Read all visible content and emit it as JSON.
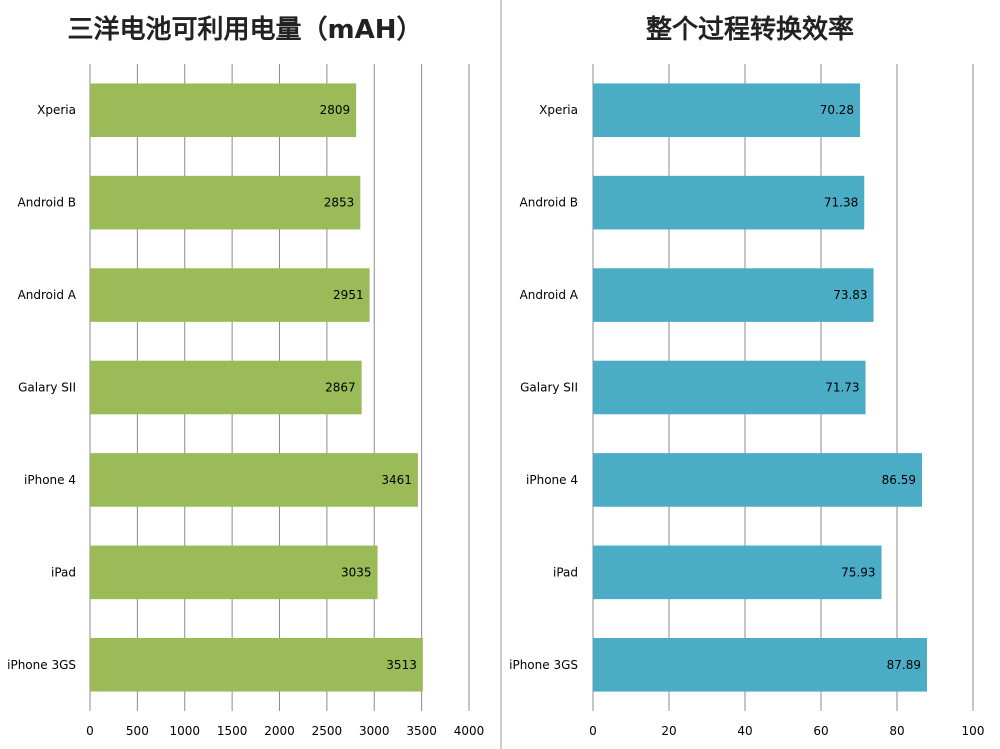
{
  "chart_data": [
    {
      "type": "bar",
      "orientation": "horizontal",
      "title": "三洋电池可利用电量（mAH）",
      "categories": [
        "Xperia",
        "Android B",
        "Android A",
        "Galary SII",
        "iPhone 4",
        "iPad",
        "iPhone 3GS"
      ],
      "values": [
        2809,
        2853,
        2951,
        2867,
        3461,
        3035,
        3513
      ],
      "xlim": [
        0,
        4000
      ],
      "ticks": [
        0,
        500,
        1000,
        1500,
        2000,
        2500,
        3000,
        3500,
        4000
      ],
      "grid": true,
      "legend": "none",
      "color": "#9bbb59"
    },
    {
      "type": "bar",
      "orientation": "horizontal",
      "title": "整个过程转换效率",
      "categories": [
        "Xperia",
        "Android B",
        "Android A",
        "Galary SII",
        "iPhone 4",
        "iPad",
        "iPhone 3GS"
      ],
      "values": [
        70.28,
        71.38,
        73.83,
        71.73,
        86.59,
        75.93,
        87.89
      ],
      "xlim": [
        0,
        100
      ],
      "ticks": [
        0,
        20,
        40,
        60,
        80,
        100
      ],
      "grid": true,
      "legend": "none",
      "color": "#4bacc6"
    }
  ]
}
